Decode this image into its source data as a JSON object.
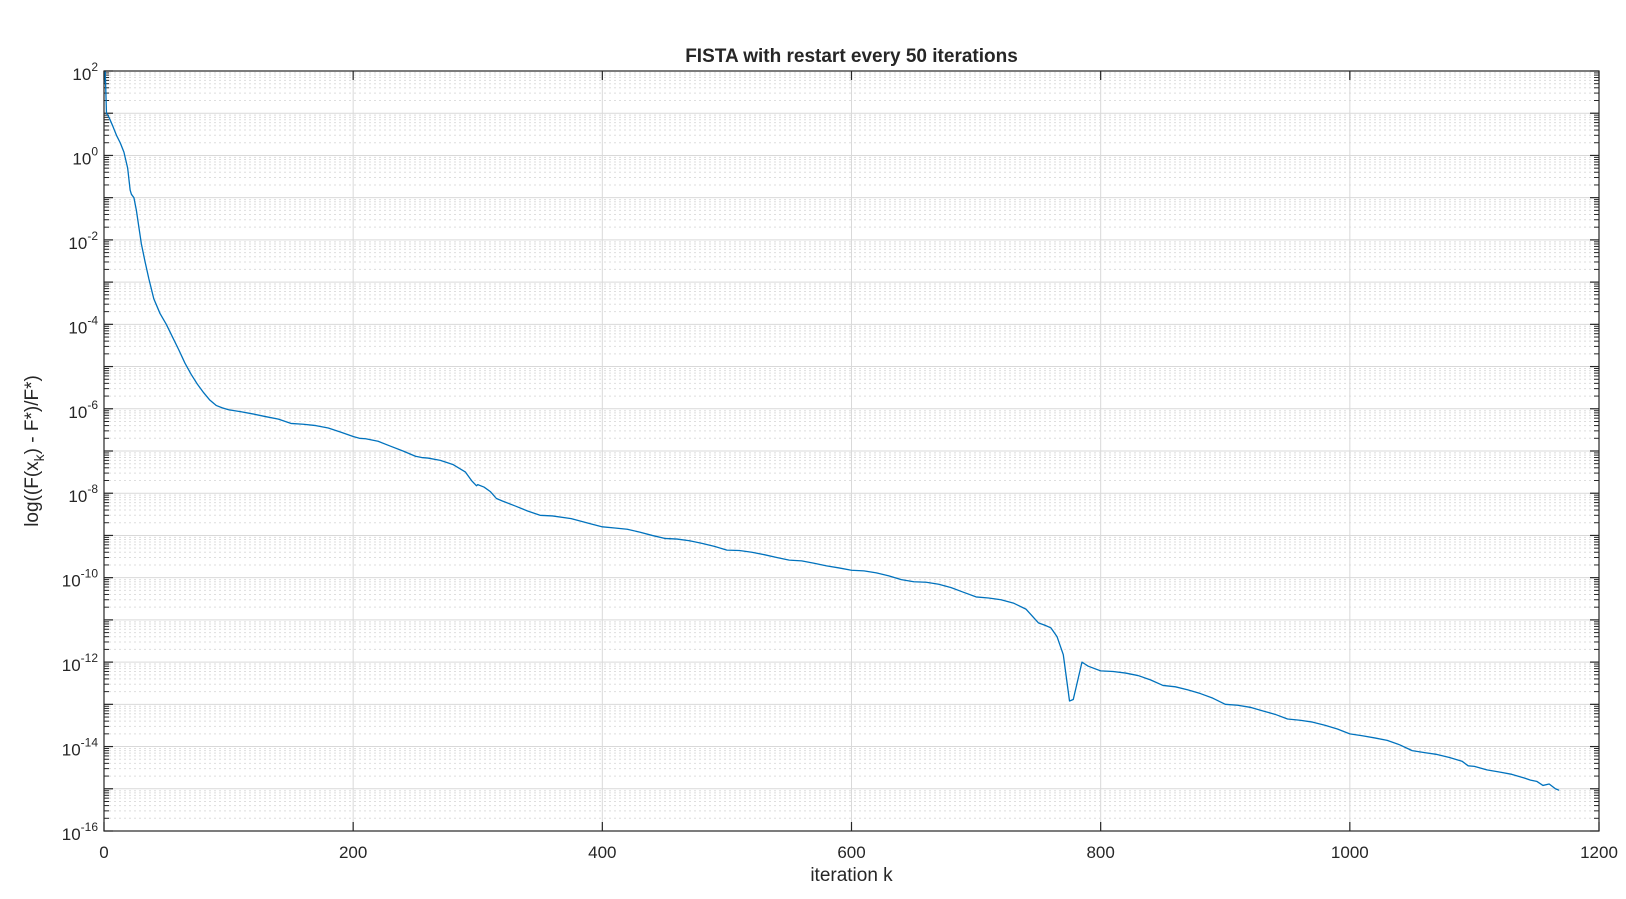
{
  "chart_data": {
    "type": "line",
    "title": "FISTA with restart every 50 iterations",
    "xlabel": "iteration k",
    "ylabel": {
      "prefix": "log((F(x",
      "subscript": "k",
      "suffix": ") - F*)/F*)"
    },
    "xlim": [
      0,
      1200
    ],
    "ylim": [
      1e-16,
      100
    ],
    "y_scale": "log",
    "grid": true,
    "minor_grid": true,
    "x_ticks": [
      {
        "value": 0,
        "label": "0"
      },
      {
        "value": 200,
        "label": "200"
      },
      {
        "value": 400,
        "label": "400"
      },
      {
        "value": 600,
        "label": "600"
      },
      {
        "value": 800,
        "label": "800"
      },
      {
        "value": 1000,
        "label": "1000"
      },
      {
        "value": 1200,
        "label": "1200"
      }
    ],
    "y_ticks": [
      {
        "value": 100.0,
        "base": "10",
        "exp": "2"
      },
      {
        "value": 1.0,
        "base": "10",
        "exp": "0"
      },
      {
        "value": 0.01,
        "base": "10",
        "exp": "-2"
      },
      {
        "value": 0.0001,
        "base": "10",
        "exp": "-4"
      },
      {
        "value": 1e-06,
        "base": "10",
        "exp": "-6"
      },
      {
        "value": 1e-08,
        "base": "10",
        "exp": "-8"
      },
      {
        "value": 1e-10,
        "base": "10",
        "exp": "-10"
      },
      {
        "value": 1e-12,
        "base": "10",
        "exp": "-12"
      },
      {
        "value": 1e-14,
        "base": "10",
        "exp": "-14"
      },
      {
        "value": 1e-16,
        "base": "10",
        "exp": "-16"
      }
    ],
    "series": [
      {
        "color": "#0072BD",
        "x": [
          0,
          1,
          2,
          4,
          7,
          10,
          13,
          16,
          19,
          21,
          22,
          24,
          26,
          28,
          30,
          33,
          36,
          40,
          45,
          50,
          55,
          60,
          65,
          70,
          75,
          80,
          85,
          90,
          95,
          100,
          110,
          120,
          130,
          140,
          150,
          160,
          170,
          180,
          190,
          200,
          205,
          210,
          220,
          230,
          240,
          250,
          255,
          260,
          270,
          280,
          290,
          295,
          299,
          300,
          305,
          310,
          315,
          320,
          330,
          340,
          350,
          360,
          375,
          390,
          400,
          410,
          420,
          430,
          440,
          450,
          460,
          470,
          480,
          490,
          500,
          510,
          520,
          530,
          540,
          550,
          560,
          570,
          580,
          590,
          600,
          610,
          620,
          630,
          640,
          650,
          660,
          670,
          680,
          690,
          700,
          710,
          720,
          730,
          740,
          750,
          755,
          760,
          765,
          770,
          775,
          778,
          785,
          790,
          800,
          810,
          820,
          830,
          840,
          850,
          860,
          870,
          880,
          890,
          900,
          910,
          920,
          930,
          940,
          950,
          960,
          970,
          980,
          990,
          1000,
          1010,
          1020,
          1030,
          1040,
          1050,
          1060,
          1070,
          1080,
          1090,
          1095,
          1100,
          1110,
          1120,
          1130,
          1140,
          1145,
          1150,
          1155,
          1160,
          1165,
          1168
        ],
        "y": [
          50,
          100,
          10,
          8,
          5,
          3,
          2,
          1.2,
          0.5,
          0.15,
          0.12,
          0.1,
          0.05,
          0.02,
          0.008,
          0.003,
          0.0012,
          0.0004,
          0.00018,
          0.0001,
          5e-05,
          2.5e-05,
          1.2e-05,
          6.5e-06,
          3.8e-06,
          2.4e-06,
          1.6e-06,
          1.2e-06,
          1.05e-06,
          9.5e-07,
          8.5e-07,
          7.5e-07,
          6.5e-07,
          5.7e-07,
          4.5e-07,
          4.3e-07,
          4e-07,
          3.5e-07,
          2.8e-07,
          2.2e-07,
          2e-07,
          1.95e-07,
          1.7e-07,
          1.3e-07,
          1e-07,
          7.5e-08,
          7e-08,
          6.8e-08,
          6e-08,
          4.8e-08,
          3.2e-08,
          2e-08,
          1.5e-08,
          1.6e-08,
          1.4e-08,
          1.1e-08,
          7.5e-09,
          6.5e-09,
          5e-09,
          3.8e-09,
          3e-09,
          2.9e-09,
          2.5e-09,
          1.9e-09,
          1.6e-09,
          1.5e-09,
          1.4e-09,
          1.2e-09,
          1e-09,
          8.5e-10,
          8.2e-10,
          7.5e-10,
          6.5e-10,
          5.5e-10,
          4.5e-10,
          4.4e-10,
          4e-10,
          3.5e-10,
          3e-10,
          2.6e-10,
          2.5e-10,
          2.2e-10,
          1.9e-10,
          1.7e-10,
          1.5e-10,
          1.45e-10,
          1.3e-10,
          1.1e-10,
          9e-11,
          8e-11,
          7.8e-11,
          7e-11,
          5.8e-11,
          4.5e-11,
          3.5e-11,
          3.3e-11,
          3e-11,
          2.5e-11,
          1.8e-11,
          8.5e-12,
          7.5e-12,
          6.5e-12,
          4e-12,
          1.5e-12,
          1.2e-13,
          1.3e-13,
          1e-12,
          8e-13,
          6.2e-13,
          6e-13,
          5.5e-13,
          4.8e-13,
          3.8e-13,
          2.8e-13,
          2.6e-13,
          2.2e-13,
          1.8e-13,
          1.4e-13,
          1e-13,
          9.5e-14,
          8.5e-14,
          7e-14,
          5.8e-14,
          4.5e-14,
          4.2e-14,
          3.8e-14,
          3.2e-14,
          2.6e-14,
          2e-14,
          1.8e-14,
          1.6e-14,
          1.4e-14,
          1.1e-14,
          8e-15,
          7.2e-15,
          6.5e-15,
          5.5e-15,
          4.5e-15,
          3.5e-15,
          3.4e-15,
          2.8e-15,
          2.5e-15,
          2.2e-15,
          1.8e-15,
          1.6e-15,
          1.5e-15,
          1.2e-15,
          1.3e-15,
          1e-15,
          9.2e-16
        ]
      }
    ]
  }
}
